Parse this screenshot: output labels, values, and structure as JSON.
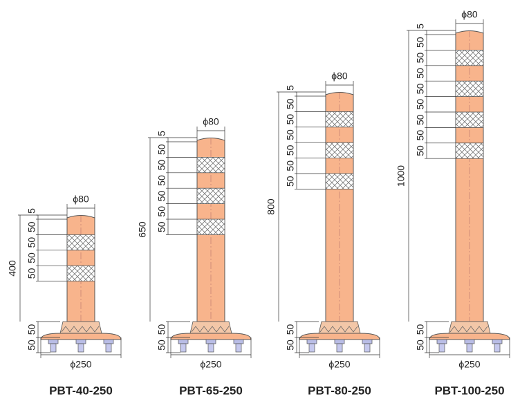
{
  "products": [
    {
      "name": "PBT-40-250",
      "top_diameter": "ϕ80",
      "base_diameter": "ϕ250",
      "height": "400",
      "top_dims": [
        "5",
        "50",
        "50",
        "50",
        "50"
      ],
      "base_dims": [
        "50",
        "50"
      ]
    },
    {
      "name": "PBT-65-250",
      "top_diameter": "ϕ80",
      "base_diameter": "ϕ250",
      "height": "650",
      "top_dims": [
        "5",
        "50",
        "50",
        "50",
        "50",
        "50",
        "50"
      ],
      "base_dims": [
        "50",
        "50"
      ]
    },
    {
      "name": "PBT-80-250",
      "top_diameter": "ϕ80",
      "base_diameter": "ϕ250",
      "height": "800",
      "top_dims": [
        "5",
        "50",
        "50",
        "50",
        "50",
        "50",
        "50"
      ],
      "base_dims": [
        "50",
        "50"
      ]
    },
    {
      "name": "PBT-100-250",
      "top_diameter": "ϕ80",
      "base_diameter": "ϕ250",
      "height": "1000",
      "top_dims": [
        "5",
        "50",
        "50",
        "50",
        "50",
        "50",
        "50",
        "50",
        "50"
      ],
      "base_dims": [
        "50",
        "50"
      ]
    }
  ]
}
